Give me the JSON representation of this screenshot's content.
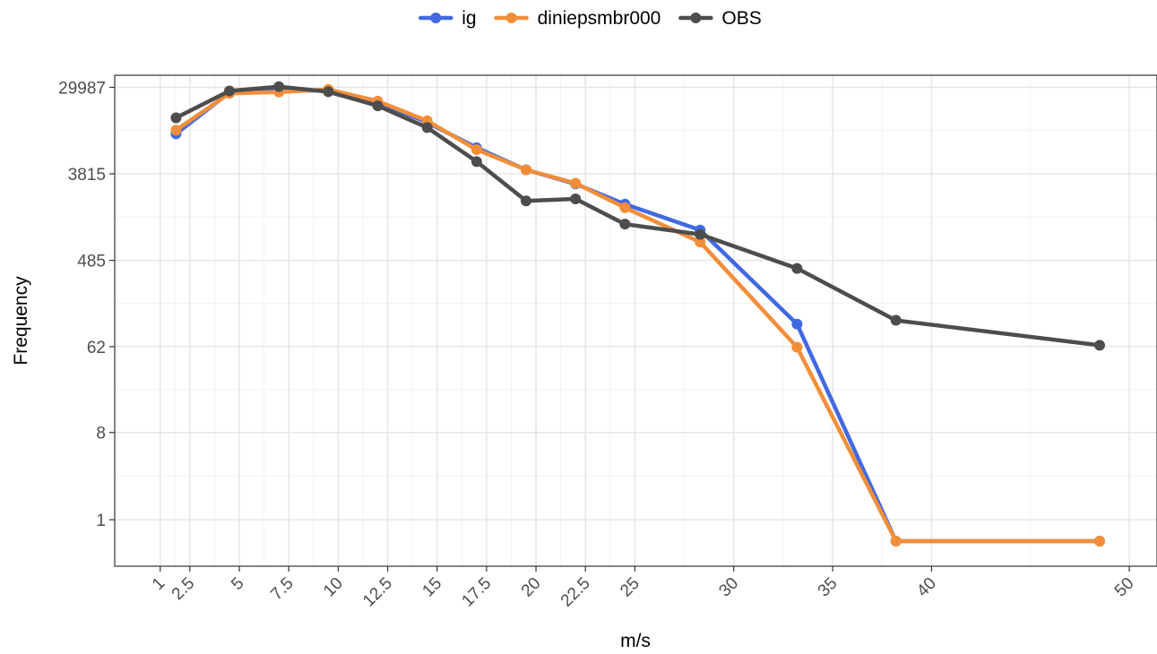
{
  "chart_data": {
    "type": "line",
    "xlabel": "m/s",
    "ylabel": "Frequency",
    "x_ticks": [
      1,
      2.5,
      5,
      7.5,
      10,
      12.5,
      15,
      17.5,
      20,
      22.5,
      25,
      30,
      35,
      40,
      50
    ],
    "x_tick_labels": [
      "1",
      "2.5",
      "5",
      "7.5",
      "10",
      "12.5",
      "15",
      "17.5",
      "20",
      "22.5",
      "25",
      "30",
      "35",
      "40",
      "50"
    ],
    "xlim": [
      -1.3,
      51.4
    ],
    "y_scale": "log",
    "y_ticks": [
      1,
      8,
      62,
      485,
      3815,
      29987
    ],
    "y_tick_labels": [
      "1",
      "8",
      "62",
      "485",
      "3815",
      "29987"
    ],
    "ylim": [
      0.33,
      40000
    ],
    "grid": true,
    "legend_position": "top",
    "legend": [
      "ig",
      "diniepsmbr000",
      "OBS"
    ],
    "series": [
      {
        "name": "ig",
        "color": "#4169e1",
        "x": [
          1.8,
          4.5,
          7,
          9.5,
          12,
          14.5,
          17,
          19.5,
          22,
          24.5,
          28.3,
          33.2,
          38.2,
          48.5
        ],
        "y": [
          9900,
          26500,
          27500,
          28000,
          21000,
          13000,
          7100,
          4200,
          3000,
          1850,
          1000,
          106,
          0.6,
          0.6
        ]
      },
      {
        "name": "diniepsmbr000",
        "color": "#f28e3a",
        "x": [
          1.8,
          4.5,
          7,
          9.5,
          12,
          14.5,
          17,
          19.5,
          22,
          24.5,
          28.3,
          33.2,
          38.2,
          48.5
        ],
        "y": [
          10800,
          26000,
          26800,
          28500,
          21600,
          13500,
          6800,
          4200,
          3050,
          1700,
          750,
          61,
          0.6,
          0.6
        ]
      },
      {
        "name": "OBS",
        "color": "#4d4d4d",
        "x": [
          1.8,
          4.5,
          7,
          9.5,
          12,
          14.5,
          17,
          19.5,
          22,
          24.5,
          28.3,
          33.2,
          38.2,
          48.5
        ],
        "y": [
          14500,
          27500,
          30500,
          27000,
          19300,
          11500,
          5100,
          2000,
          2100,
          1150,
          900,
          400,
          116,
          64
        ]
      }
    ]
  }
}
